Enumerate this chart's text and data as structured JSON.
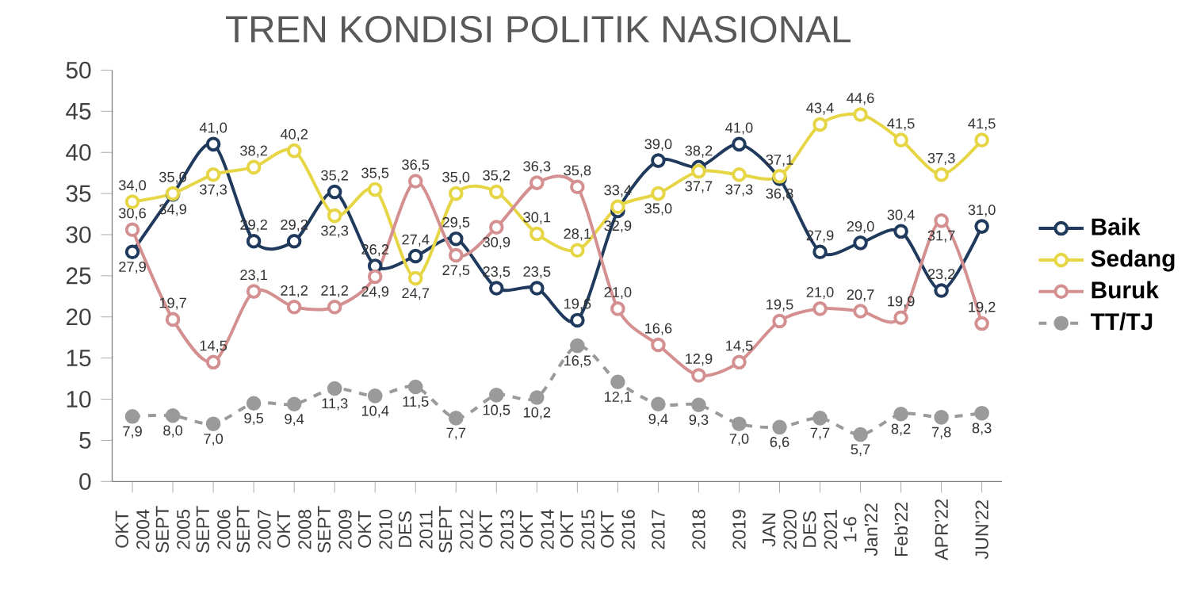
{
  "chart_data": {
    "type": "line",
    "title": "TREN KONDISI POLITIK NASIONAL",
    "categories": [
      "OKT 2004",
      "SEPT 2005",
      "SEPT 2006",
      "SEPT 2007",
      "OKT 2008",
      "SEPT 2009",
      "OKT 2010",
      "DES 2011",
      "SEPT 2012",
      "OKT 2013",
      "OKT 2014",
      "OKT 2015",
      "OKT 2016",
      "2017",
      "2018",
      "2019",
      "JAN 2020",
      "DES 2021",
      "1-6 Jan'22",
      "Feb'22",
      "APR'22",
      "JUN'22"
    ],
    "series": [
      {
        "name": "Baik",
        "color": "#1f3a5c",
        "values": [
          27.9,
          34.9,
          41.0,
          29.2,
          29.2,
          35.2,
          26.2,
          27.4,
          29.5,
          23.5,
          23.5,
          19.6,
          32.9,
          39.0,
          38.2,
          41.0,
          36.8,
          27.9,
          29.0,
          30.4,
          23.2,
          31.0
        ],
        "value_labels": [
          "27,9",
          "34,9",
          "41,0",
          "29,2",
          "29,2",
          "35,2",
          "26,2",
          "27,4",
          "29,5",
          "23,5",
          "23,5",
          "19,6",
          "32,9",
          "39,0",
          "38,2",
          "41,0",
          "36,8",
          "27,9",
          "29,0",
          "30,4",
          "23,2",
          "31,0"
        ]
      },
      {
        "name": "Sedang",
        "color": "#e6d545",
        "values": [
          34.0,
          35.0,
          37.3,
          38.2,
          40.2,
          32.3,
          35.5,
          24.7,
          35.0,
          35.2,
          30.1,
          28.1,
          33.4,
          35.0,
          37.7,
          37.3,
          37.1,
          43.4,
          44.6,
          41.5,
          37.3,
          41.5
        ],
        "value_labels": [
          "34,0",
          "35,0",
          "37,3",
          "38,2",
          "40,2",
          "32,3",
          "35,5",
          "24,7",
          "35,0",
          "35,2",
          "30,1",
          "28,1",
          "33,4",
          "35,0",
          "37,7",
          "37,3",
          "37,1",
          "43,4",
          "44,6",
          "41,5",
          "37,3",
          "41,5"
        ]
      },
      {
        "name": "Buruk",
        "color": "#d49090",
        "values": [
          30.6,
          19.7,
          14.5,
          23.1,
          21.2,
          21.2,
          24.9,
          36.5,
          27.5,
          30.9,
          36.3,
          35.8,
          21.0,
          16.6,
          12.9,
          14.5,
          19.5,
          21.0,
          20.7,
          19.9,
          31.7,
          19.2
        ],
        "value_labels": [
          "30,6",
          "19,7",
          "14,5",
          "23,1",
          "21,2",
          "21,2",
          "24,9",
          "36,5",
          "27,5",
          "30,9",
          "36,3",
          "35,8",
          "21,0",
          "16,6",
          "12,9",
          "14,5",
          "19,5",
          "21,0",
          "20,7",
          "19,9",
          "31,7",
          "19,2"
        ]
      },
      {
        "name": "TT/TJ",
        "color": "#9a9a9a",
        "line_style": "dashed",
        "values": [
          7.9,
          8.0,
          7.0,
          9.5,
          9.4,
          11.3,
          10.4,
          11.5,
          7.7,
          10.5,
          10.2,
          16.5,
          12.1,
          9.4,
          9.3,
          7.0,
          6.6,
          7.7,
          5.7,
          8.2,
          7.8,
          8.3
        ],
        "value_labels": [
          "7,9",
          "8,0",
          "7,0",
          "9,5",
          "9,4",
          "11,3",
          "10,4",
          "11,5",
          "7,7",
          "10,5",
          "10,2",
          "16,5",
          "12,1",
          "9,4",
          "9,3",
          "7,0",
          "6,6",
          "7,7",
          "5,7",
          "8,2",
          "7,8",
          "8,3"
        ]
      }
    ],
    "ylim": [
      0,
      50
    ],
    "yticks": [
      0,
      5,
      10,
      15,
      20,
      25,
      30,
      35,
      40,
      45,
      50
    ],
    "grid": false,
    "legend": "right",
    "marker": "circle"
  }
}
